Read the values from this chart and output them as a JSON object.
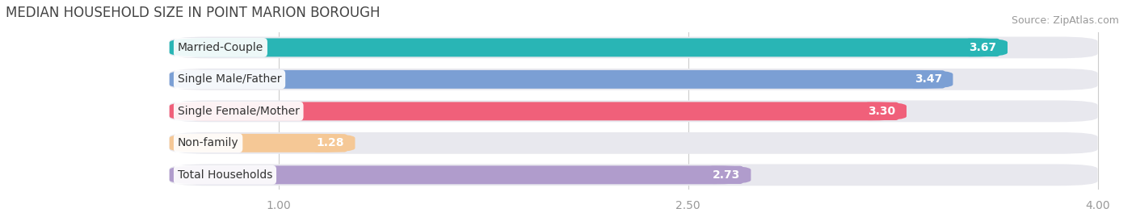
{
  "title": "MEDIAN HOUSEHOLD SIZE IN POINT MARION BOROUGH",
  "source": "Source: ZipAtlas.com",
  "categories": [
    "Married-Couple",
    "Single Male/Father",
    "Single Female/Mother",
    "Non-family",
    "Total Households"
  ],
  "values": [
    3.67,
    3.47,
    3.3,
    1.28,
    2.73
  ],
  "bar_colors": [
    "#29b5b5",
    "#7b9fd4",
    "#f0607a",
    "#f5c896",
    "#b09ccc"
  ],
  "bar_bg_color": "#e8e8ee",
  "xlim_min": 0.0,
  "xlim_max": 4.0,
  "xaxis_min": 0.6,
  "xticks": [
    1.0,
    2.5,
    4.0
  ],
  "xtick_labels": [
    "1.00",
    "2.50",
    "4.00"
  ],
  "title_fontsize": 12,
  "label_fontsize": 10,
  "value_fontsize": 10,
  "source_fontsize": 9,
  "background_color": "#ffffff"
}
